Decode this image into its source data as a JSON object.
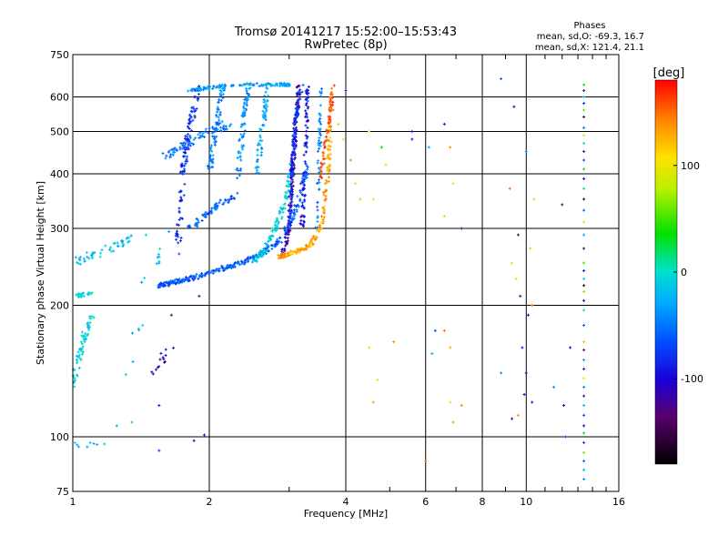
{
  "chart_data": {
    "type": "scatter",
    "title": "Tromsø 20141217 15:52:00–15:53:43",
    "subtitle": "RwPretec (8p)",
    "xlabel": "Frequency [MHz]",
    "ylabel": "Stationary phase Virtual Height [km]",
    "x_scale": "log",
    "y_scale": "log",
    "xlim": [
      1,
      16
    ],
    "ylim": [
      75,
      750
    ],
    "x_ticks": [
      1,
      2,
      4,
      6,
      8,
      10,
      16
    ],
    "x_tick_labels": [
      "1",
      "2",
      "4",
      "6",
      "8",
      "10",
      "16"
    ],
    "y_ticks": [
      75,
      100,
      200,
      300,
      400,
      500,
      600,
      750
    ],
    "y_tick_labels": [
      "75",
      "100",
      "200",
      "300",
      "400",
      "500",
      "600",
      "750"
    ],
    "grid": true,
    "stats": {
      "heading": "Phases",
      "o_line": "mean, sd,O: -69.3, 16.7",
      "x_line": "mean, sd,X: 121.4, 21.1"
    },
    "colorbar": {
      "label": "[deg]",
      "ticks": [
        100,
        0,
        -100
      ],
      "tick_labels": [
        "100",
        "0",
        "-100"
      ],
      "range": [
        -180,
        180
      ]
    },
    "traces": [
      {
        "x": [
          1.55,
          1.65,
          1.8,
          2.0,
          2.3,
          2.6,
          2.9,
          3.1,
          3.3
        ],
        "y": [
          222,
          225,
          230,
          238,
          248,
          262,
          285,
          330,
          420
        ],
        "phase": -60,
        "n": 300,
        "spread": 0.012
      },
      {
        "x": [
          2.5,
          2.65,
          2.8,
          2.95,
          3.05
        ],
        "y": [
          250,
          268,
          300,
          350,
          420
        ],
        "phase": -10,
        "n": 120,
        "spread": 0.012
      },
      {
        "x": [
          2.9,
          3.0,
          3.05,
          3.1,
          3.15
        ],
        "y": [
          260,
          300,
          400,
          520,
          640
        ],
        "phase": -115,
        "n": 150,
        "spread": 0.009
      },
      {
        "x": [
          3.0,
          3.05,
          3.1,
          3.2
        ],
        "y": [
          300,
          420,
          540,
          640
        ],
        "phase": -80,
        "n": 110,
        "spread": 0.009
      },
      {
        "x": [
          3.2,
          3.25,
          3.28,
          3.3
        ],
        "y": [
          300,
          400,
          520,
          640
        ],
        "phase": -90,
        "n": 80,
        "spread": 0.01
      },
      {
        "x": [
          2.85,
          3.1,
          3.35,
          3.55,
          3.65,
          3.7
        ],
        "y": [
          258,
          265,
          275,
          310,
          400,
          520
        ],
        "phase": 130,
        "n": 180,
        "spread": 0.01
      },
      {
        "x": [
          3.5,
          3.6,
          3.7,
          3.75
        ],
        "y": [
          380,
          460,
          560,
          640
        ],
        "phase": 160,
        "n": 70,
        "spread": 0.008
      },
      {
        "x": [
          3.45,
          3.5,
          3.52
        ],
        "y": [
          300,
          450,
          640
        ],
        "phase": -40,
        "n": 50,
        "spread": 0.008
      },
      {
        "x": [
          1.7,
          1.75,
          1.8,
          1.9
        ],
        "y": [
          260,
          400,
          500,
          640
        ],
        "phase": -80,
        "n": 110,
        "spread": 0.015
      },
      {
        "x": [
          1.6,
          1.8,
          2.0,
          2.2
        ],
        "y": [
          440,
          470,
          500,
          520
        ],
        "phase": -50,
        "n": 70,
        "spread": 0.02
      },
      {
        "x": [
          1.8,
          2.0,
          2.3,
          2.6,
          2.9,
          3.0
        ],
        "y": [
          620,
          630,
          640,
          640,
          640,
          640
        ],
        "phase": -35,
        "n": 120,
        "spread": 0.008
      },
      {
        "x": [
          2.0,
          2.05,
          2.1,
          2.15
        ],
        "y": [
          400,
          480,
          560,
          640
        ],
        "phase": -45,
        "n": 70,
        "spread": 0.012
      },
      {
        "x": [
          2.3,
          2.35,
          2.4,
          2.45
        ],
        "y": [
          380,
          460,
          560,
          640
        ],
        "phase": -40,
        "n": 70,
        "spread": 0.012
      },
      {
        "x": [
          2.55,
          2.6,
          2.65,
          2.7
        ],
        "y": [
          400,
          480,
          560,
          640
        ],
        "phase": -30,
        "n": 60,
        "spread": 0.012
      },
      {
        "x": [
          1.8,
          1.95,
          2.1,
          2.3
        ],
        "y": [
          300,
          320,
          340,
          360
        ],
        "phase": -60,
        "n": 60,
        "spread": 0.015
      },
      {
        "x": [
          1.0,
          1.03,
          1.06,
          1.1
        ],
        "y": [
          130,
          150,
          170,
          190
        ],
        "phase": -10,
        "n": 70,
        "spread": 0.015
      },
      {
        "x": [
          1.0,
          1.1,
          1.2,
          1.35
        ],
        "y": [
          250,
          260,
          270,
          285
        ],
        "phase": -20,
        "n": 45,
        "spread": 0.02
      },
      {
        "x": [
          1.02,
          1.06,
          1.1
        ],
        "y": [
          210,
          212,
          214
        ],
        "phase": -10,
        "n": 20,
        "spread": 0.01
      },
      {
        "x": [
          1.5,
          1.65
        ],
        "y": [
          140,
          160
        ],
        "phase": -110,
        "n": 14,
        "spread": 0.02
      },
      {
        "x": [
          1.0,
          1.1,
          1.2
        ],
        "y": [
          95,
          96,
          97
        ],
        "phase": -15,
        "n": 8,
        "spread": 0.02
      },
      {
        "x": [
          1.3,
          1.45,
          1.6
        ],
        "y": [
          120,
          220,
          300
        ],
        "phase": -20,
        "n": 15,
        "spread": 0.03
      }
    ],
    "points": [
      {
        "x": 3.7,
        "y": 600,
        "phase": 130
      },
      {
        "x": 3.75,
        "y": 560,
        "phase": 150
      },
      {
        "x": 3.85,
        "y": 520,
        "phase": 120
      },
      {
        "x": 3.95,
        "y": 480,
        "phase": 110
      },
      {
        "x": 4.0,
        "y": 620,
        "phase": -90
      },
      {
        "x": 4.1,
        "y": 430,
        "phase": 140
      },
      {
        "x": 4.2,
        "y": 380,
        "phase": 100
      },
      {
        "x": 4.3,
        "y": 350,
        "phase": 120
      },
      {
        "x": 4.5,
        "y": 500,
        "phase": 90
      },
      {
        "x": 4.6,
        "y": 350,
        "phase": 100
      },
      {
        "x": 4.8,
        "y": 460,
        "phase": 40
      },
      {
        "x": 4.9,
        "y": 420,
        "phase": 110
      },
      {
        "x": 5.6,
        "y": 500,
        "phase": -100
      },
      {
        "x": 5.6,
        "y": 480,
        "phase": -90
      },
      {
        "x": 6.1,
        "y": 460,
        "phase": -30
      },
      {
        "x": 6.6,
        "y": 520,
        "phase": -110
      },
      {
        "x": 6.6,
        "y": 320,
        "phase": 90
      },
      {
        "x": 6.8,
        "y": 460,
        "phase": 140
      },
      {
        "x": 6.9,
        "y": 380,
        "phase": 100
      },
      {
        "x": 7.2,
        "y": 300,
        "phase": -120
      },
      {
        "x": 8.8,
        "y": 660,
        "phase": -60
      },
      {
        "x": 9.4,
        "y": 570,
        "phase": -110
      },
      {
        "x": 9.2,
        "y": 370,
        "phase": 150
      },
      {
        "x": 9.3,
        "y": 250,
        "phase": 100
      },
      {
        "x": 9.5,
        "y": 230,
        "phase": 80
      },
      {
        "x": 9.6,
        "y": 290,
        "phase": -140
      },
      {
        "x": 9.7,
        "y": 210,
        "phase": -120
      },
      {
        "x": 10.0,
        "y": 450,
        "phase": -40
      },
      {
        "x": 10.2,
        "y": 270,
        "phase": 120
      },
      {
        "x": 10.3,
        "y": 200,
        "phase": 150
      },
      {
        "x": 10.1,
        "y": 190,
        "phase": -100
      },
      {
        "x": 10.4,
        "y": 350,
        "phase": 80
      },
      {
        "x": 12.0,
        "y": 340,
        "phase": -130
      },
      {
        "x": 4.5,
        "y": 160,
        "phase": 100
      },
      {
        "x": 4.6,
        "y": 120,
        "phase": 130
      },
      {
        "x": 4.7,
        "y": 135,
        "phase": 110
      },
      {
        "x": 5.1,
        "y": 165,
        "phase": 140
      },
      {
        "x": 6.2,
        "y": 155,
        "phase": -30
      },
      {
        "x": 6.3,
        "y": 175,
        "phase": -60
      },
      {
        "x": 6.6,
        "y": 175,
        "phase": 150
      },
      {
        "x": 6.8,
        "y": 160,
        "phase": 130
      },
      {
        "x": 6.8,
        "y": 120,
        "phase": 80
      },
      {
        "x": 6.9,
        "y": 108,
        "phase": 60
      },
      {
        "x": 7.2,
        "y": 118,
        "phase": 140
      },
      {
        "x": 6.0,
        "y": 88,
        "phase": 150
      },
      {
        "x": 8.8,
        "y": 140,
        "phase": -40
      },
      {
        "x": 9.3,
        "y": 110,
        "phase": -120
      },
      {
        "x": 9.6,
        "y": 112,
        "phase": 140
      },
      {
        "x": 9.9,
        "y": 125,
        "phase": -110
      },
      {
        "x": 10.0,
        "y": 140,
        "phase": -120
      },
      {
        "x": 9.8,
        "y": 160,
        "phase": -90
      },
      {
        "x": 10.3,
        "y": 120,
        "phase": -90
      },
      {
        "x": 11.5,
        "y": 130,
        "phase": -40
      },
      {
        "x": 12.1,
        "y": 118,
        "phase": -100
      },
      {
        "x": 12.2,
        "y": 100,
        "phase": -80
      },
      {
        "x": 12.5,
        "y": 160,
        "phase": -110
      },
      {
        "x": 1.85,
        "y": 98,
        "phase": -110
      },
      {
        "x": 1.95,
        "y": 101,
        "phase": -90
      },
      {
        "x": 1.55,
        "y": 93,
        "phase": -70
      },
      {
        "x": 1.25,
        "y": 106,
        "phase": -30
      },
      {
        "x": 1.35,
        "y": 108,
        "phase": -20
      },
      {
        "x": 1.55,
        "y": 118,
        "phase": -90
      },
      {
        "x": 1.65,
        "y": 190,
        "phase": -130
      },
      {
        "x": 1.55,
        "y": 250,
        "phase": -40
      },
      {
        "x": 1.45,
        "y": 290,
        "phase": -10
      },
      {
        "x": 1.9,
        "y": 210,
        "phase": -120
      }
    ],
    "column_x": 13.4,
    "column_y": [
      640,
      620,
      600,
      580,
      560,
      540,
      510,
      490,
      470,
      450,
      430,
      410,
      390,
      370,
      350,
      330,
      310,
      290,
      270,
      250,
      240,
      230,
      222,
      215,
      205,
      195,
      180,
      165,
      158,
      150,
      143,
      136,
      130,
      124,
      118,
      112,
      106,
      102,
      97,
      92,
      88,
      84,
      80
    ],
    "column_phase": [
      30,
      -120,
      -20,
      -80,
      60,
      -150,
      -50,
      90,
      10,
      -130,
      -70,
      40,
      -100,
      20,
      -160,
      -60,
      80,
      -30,
      -140,
      50,
      -90,
      -10,
      -170,
      70,
      -110,
      0,
      -60,
      120,
      -130,
      -40,
      -90,
      100,
      -50,
      -120,
      -20,
      -70,
      -100,
      30,
      -80,
      60,
      -60,
      -20,
      -40
    ]
  }
}
